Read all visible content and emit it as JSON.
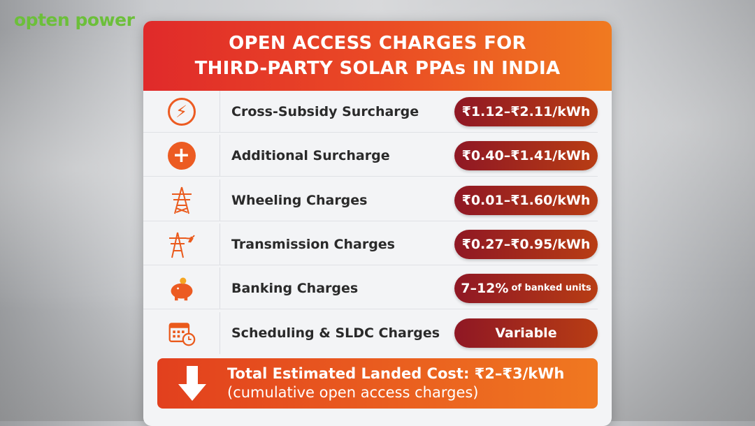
{
  "logo": {
    "text": "opten power"
  },
  "header": {
    "line1": "OPEN ACCESS CHARGES FOR",
    "line2": "THIRD-PARTY SOLAR PPAs IN INDIA"
  },
  "rows": [
    {
      "icon": "lightning-icon",
      "label": "Cross-Subsidy Surcharge",
      "value": "₹1.12–₹2.11/kWh"
    },
    {
      "icon": "plus-circle-icon",
      "label": "Additional Surcharge",
      "value": "₹0.40–₹1.41/kWh"
    },
    {
      "icon": "transmission-tower-icon",
      "label": "Wheeling Charges",
      "value": "₹0.01–₹1.60/kWh"
    },
    {
      "icon": "power-lines-icon",
      "label": "Transmission Charges",
      "value": "₹0.27–₹0.95/kWh"
    },
    {
      "icon": "piggy-bank-icon",
      "label": "Banking Charges",
      "value": "7–12%",
      "value_suffix": "of banked units"
    },
    {
      "icon": "calendar-clock-icon",
      "label": "Scheduling & SLDC Charges",
      "value": "Variable"
    }
  ],
  "total": {
    "icon": "arrow-down-icon",
    "title": "Total Estimated Landed Cost: ₹2–₹3/kWh",
    "subtitle": "(cumulative open access charges)"
  },
  "colors": {
    "header_start": "#e02a2a",
    "header_end": "#f07a20",
    "pill_start": "#8f1724",
    "pill_end": "#b83d14",
    "logo": "#6cbf3a"
  }
}
